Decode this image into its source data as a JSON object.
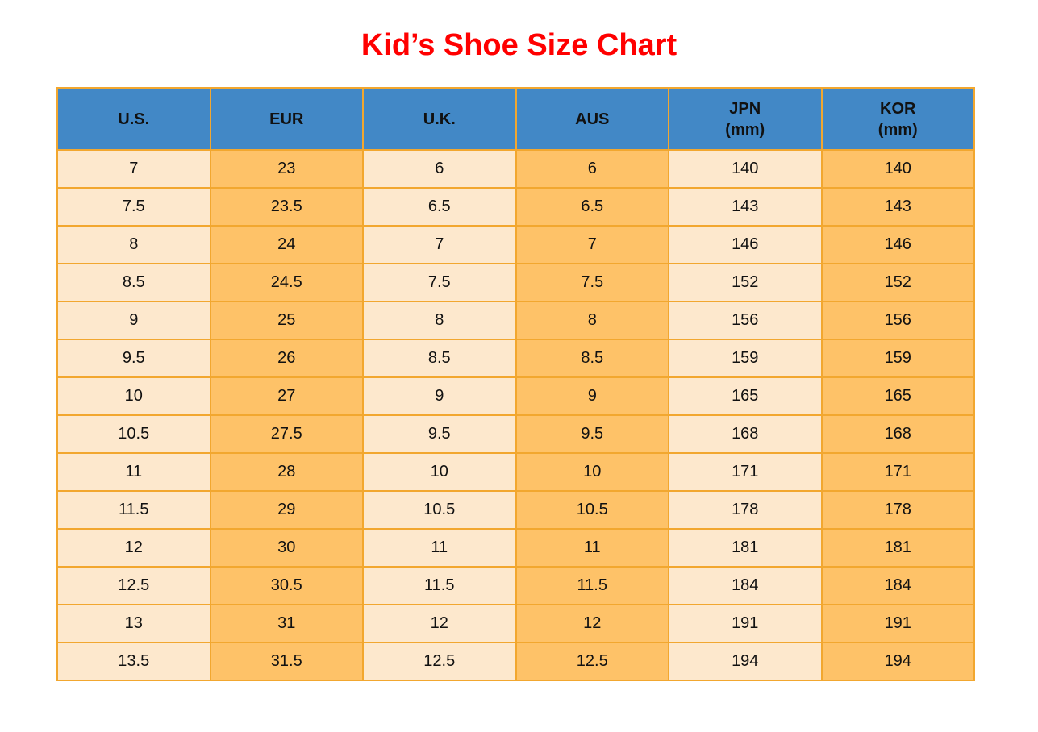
{
  "title": "Kid’s Shoe Size Chart",
  "colors": {
    "title_red": "#FF0000",
    "header_blue": "#4288C6",
    "cell_light": "#FDE8CD",
    "cell_orange": "#FEC268",
    "border_orange": "#F2A72F",
    "text_dark": "#111111"
  },
  "table": {
    "columns": [
      {
        "label": "U.S.",
        "sub": "",
        "shade": "light"
      },
      {
        "label": "EUR",
        "sub": "",
        "shade": "orange"
      },
      {
        "label": "U.K.",
        "sub": "",
        "shade": "light"
      },
      {
        "label": "AUS",
        "sub": "",
        "shade": "orange"
      },
      {
        "label": "JPN",
        "sub": "(mm)",
        "shade": "light"
      },
      {
        "label": "KOR",
        "sub": "(mm)",
        "shade": "orange"
      }
    ],
    "rows": [
      [
        "7",
        "23",
        "6",
        "6",
        "140",
        "140"
      ],
      [
        "7.5",
        "23.5",
        "6.5",
        "6.5",
        "143",
        "143"
      ],
      [
        "8",
        "24",
        "7",
        "7",
        "146",
        "146"
      ],
      [
        "8.5",
        "24.5",
        "7.5",
        "7.5",
        "152",
        "152"
      ],
      [
        "9",
        "25",
        "8",
        "8",
        "156",
        "156"
      ],
      [
        "9.5",
        "26",
        "8.5",
        "8.5",
        "159",
        "159"
      ],
      [
        "10",
        "27",
        "9",
        "9",
        "165",
        "165"
      ],
      [
        "10.5",
        "27.5",
        "9.5",
        "9.5",
        "168",
        "168"
      ],
      [
        "11",
        "28",
        "10",
        "10",
        "171",
        "171"
      ],
      [
        "11.5",
        "29",
        "10.5",
        "10.5",
        "178",
        "178"
      ],
      [
        "12",
        "30",
        "11",
        "11",
        "181",
        "181"
      ],
      [
        "12.5",
        "30.5",
        "11.5",
        "11.5",
        "184",
        "184"
      ],
      [
        "13",
        "31",
        "12",
        "12",
        "191",
        "191"
      ],
      [
        "13.5",
        "31.5",
        "12.5",
        "12.5",
        "194",
        "194"
      ]
    ]
  },
  "chart_data": {
    "type": "table",
    "title": "Kid’s Shoe Size Chart",
    "columns": [
      "U.S.",
      "EUR",
      "U.K.",
      "AUS",
      "JPN (mm)",
      "KOR (mm)"
    ],
    "rows": [
      [
        7,
        23,
        6,
        6,
        140,
        140
      ],
      [
        7.5,
        23.5,
        6.5,
        6.5,
        143,
        143
      ],
      [
        8,
        24,
        7,
        7,
        146,
        146
      ],
      [
        8.5,
        24.5,
        7.5,
        7.5,
        152,
        152
      ],
      [
        9,
        25,
        8,
        8,
        156,
        156
      ],
      [
        9.5,
        26,
        8.5,
        8.5,
        159,
        159
      ],
      [
        10,
        27,
        9,
        9,
        165,
        165
      ],
      [
        10.5,
        27.5,
        9.5,
        9.5,
        168,
        168
      ],
      [
        11,
        28,
        10,
        10,
        171,
        171
      ],
      [
        11.5,
        29,
        10.5,
        10.5,
        178,
        178
      ],
      [
        12,
        30,
        11,
        11,
        181,
        181
      ],
      [
        12.5,
        30.5,
        11.5,
        11.5,
        184,
        184
      ],
      [
        13,
        31,
        12,
        12,
        191,
        191
      ],
      [
        13.5,
        31.5,
        12.5,
        12.5,
        194,
        194
      ]
    ]
  }
}
